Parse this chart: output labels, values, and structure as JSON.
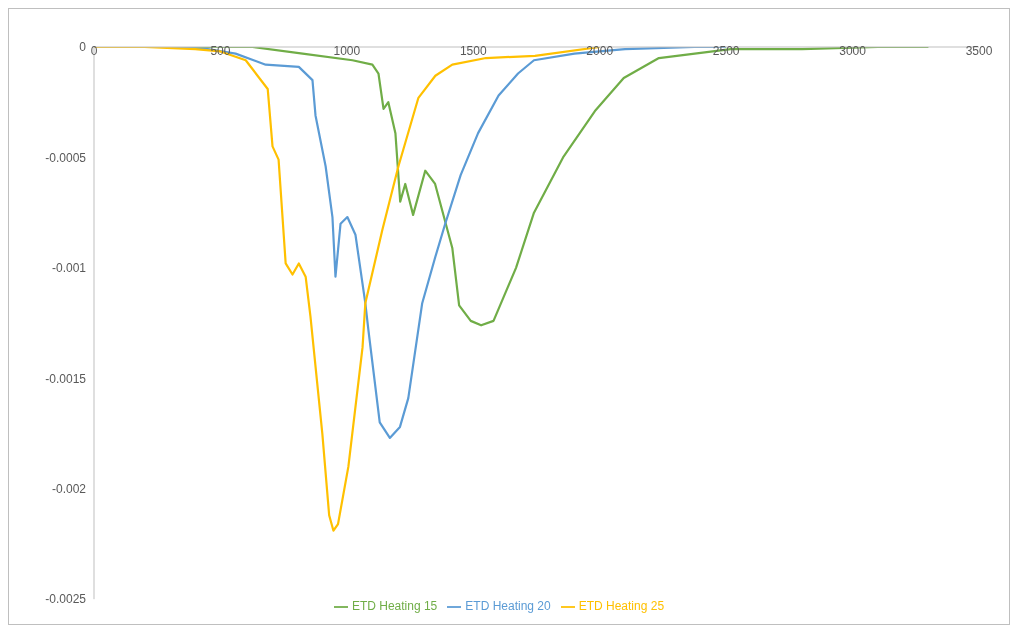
{
  "chart_data": {
    "type": "line",
    "xlim": [
      0,
      3500
    ],
    "xticks": [
      0,
      500,
      1000,
      1500,
      2000,
      2500,
      3000,
      3500
    ],
    "ylim": [
      -0.0025,
      0
    ],
    "yticks": [
      -0.0025,
      -0.002,
      -0.0015,
      -0.001,
      -0.0005,
      0
    ],
    "grid": false,
    "legend": "bottom",
    "marker": "none",
    "line_style": "solid",
    "series": [
      {
        "name": "ETD Heating 15",
        "color": "#70ad47",
        "x": [
          0,
          300,
          627,
          825,
          1022,
          1101,
          1125,
          1145,
          1164,
          1192,
          1211,
          1231,
          1262,
          1310,
          1349,
          1417,
          1444,
          1490,
          1531,
          1580,
          1669,
          1740,
          1855,
          1981,
          2095,
          2234,
          2518,
          2800,
          3100,
          3300
        ],
        "values": [
          0,
          0,
          0,
          -3e-05,
          -6e-05,
          -8e-05,
          -0.00012,
          -0.00028,
          -0.00025,
          -0.00039,
          -0.0007,
          -0.00062,
          -0.00076,
          -0.00056,
          -0.00062,
          -0.00091,
          -0.00117,
          -0.00124,
          -0.00126,
          -0.00124,
          -0.001,
          -0.00075,
          -0.0005,
          -0.00029,
          -0.00014,
          -5e-05,
          -1e-05,
          -1e-05,
          0,
          0
        ]
      },
      {
        "name": "ETD Heating 20",
        "color": "#5b9bd5",
        "x": [
          0,
          300,
          450,
          560,
          679,
          810,
          864,
          876,
          916,
          943,
          955,
          975,
          1002,
          1034,
          1073,
          1085,
          1130,
          1170,
          1210,
          1243,
          1298,
          1350,
          1389,
          1450,
          1519,
          1600,
          1677,
          1740,
          1900,
          2100,
          2375,
          2500
        ],
        "values": [
          0,
          0,
          -1e-05,
          -3e-05,
          -8e-05,
          -9e-05,
          -0.00015,
          -0.00031,
          -0.00054,
          -0.00077,
          -0.00104,
          -0.0008,
          -0.00077,
          -0.00085,
          -0.00116,
          -0.00128,
          -0.0017,
          -0.00177,
          -0.00172,
          -0.00159,
          -0.00116,
          -0.00095,
          -0.0008,
          -0.00058,
          -0.00039,
          -0.00022,
          -0.00012,
          -6e-05,
          -3e-05,
          -1e-05,
          0,
          0
        ]
      },
      {
        "name": "ETD Heating 25",
        "color": "#ffc000",
        "x": [
          0,
          200,
          400,
          500,
          600,
          687,
          706,
          730,
          758,
          785,
          810,
          837,
          856,
          903,
          930,
          947,
          965,
          1006,
          1062,
          1073,
          1140,
          1204,
          1283,
          1350,
          1417,
          1550,
          1744,
          2000
        ],
        "values": [
          0,
          0,
          -1e-05,
          -2e-05,
          -6e-05,
          -0.00019,
          -0.00045,
          -0.00051,
          -0.00098,
          -0.00103,
          -0.00098,
          -0.00104,
          -0.00122,
          -0.00175,
          -0.00212,
          -0.00219,
          -0.00216,
          -0.0019,
          -0.00136,
          -0.00116,
          -0.00083,
          -0.00054,
          -0.00023,
          -0.00013,
          -8e-05,
          -5e-05,
          -4e-05,
          0
        ]
      }
    ]
  }
}
